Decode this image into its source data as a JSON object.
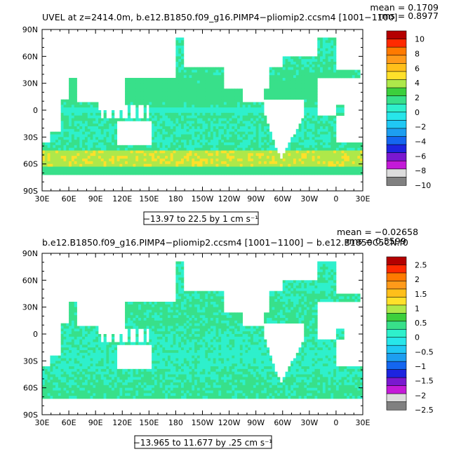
{
  "chart_data": [
    {
      "type": "heatmap",
      "title": "UVEL at z=2414.0m, b.e12.B1850.f09_g16.PIMP4−pliomip2.ccsm4 [1001−1100]",
      "stats": [
        "mean = 0.1709",
        "rms = 0.8977"
      ],
      "x_ticks": [
        "30E",
        "60E",
        "90E",
        "120E",
        "150E",
        "180",
        "150W",
        "120W",
        "90W",
        "60W",
        "30W",
        "0",
        "30E"
      ],
      "y_ticks": [
        "90N",
        "60N",
        "30N",
        "0",
        "30S",
        "60S",
        "90S"
      ],
      "xlim": [
        30,
        390
      ],
      "ylim": [
        -90,
        90
      ],
      "range_label": "−13.97 to 22.5 by 1 cm s⁻¹",
      "colorbar_labels": [
        "10",
        "8",
        "6",
        "4",
        "2",
        "0",
        "−2",
        "−4",
        "−6",
        "−8",
        "−10"
      ],
      "colorbar_range": [
        -10,
        10
      ]
    },
    {
      "type": "heatmap",
      "title": "b.e12.B1850.f09_g16.PIMP4−pliomip2.ccsm4 [1001−1100] − b.e12.B1850C5CN.f0",
      "stats": [
        "mean = −0.02658",
        "rms = 0.5599"
      ],
      "x_ticks": [
        "30E",
        "60E",
        "90E",
        "120E",
        "150E",
        "180",
        "150W",
        "120W",
        "90W",
        "60W",
        "30W",
        "0",
        "30E"
      ],
      "y_ticks": [
        "90N",
        "60N",
        "30N",
        "0",
        "30S",
        "60S",
        "90S"
      ],
      "xlim": [
        30,
        390
      ],
      "ylim": [
        -90,
        90
      ],
      "range_label": "−13.965 to 11.677 by .25 cm s⁻¹",
      "colorbar_labels": [
        "2.5",
        "2",
        "1.5",
        "1",
        "0.5",
        "0",
        "−0.5",
        "−1",
        "−1.5",
        "−2",
        "−2.5"
      ],
      "colorbar_range": [
        -2.5,
        2.5
      ]
    }
  ],
  "colorbar_colors": [
    "#b40000",
    "#ff2a00",
    "#ff7a00",
    "#ff9a1a",
    "#ffbf1a",
    "#ffe02a",
    "#aee84a",
    "#3ccf3c",
    "#38e08a",
    "#2ef0cc",
    "#27e6ea",
    "#20c8f4",
    "#1d9ef0",
    "#1466f0",
    "#1d24e0",
    "#7a18d0",
    "#c41ad8",
    "#dcdcdc",
    "#808080"
  ]
}
